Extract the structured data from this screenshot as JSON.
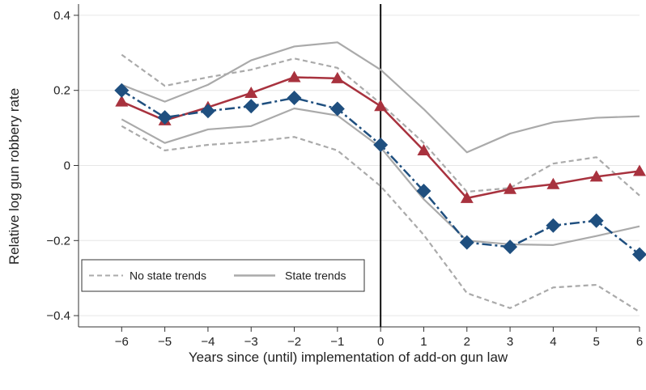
{
  "chart_data": {
    "type": "line",
    "xlabel": "Years since (until) implementation of add-on gun law",
    "ylabel": "Relative log gun robbery rate",
    "x": [
      -6,
      -5,
      -4,
      -3,
      -2,
      -1,
      0,
      1,
      2,
      3,
      4,
      5,
      6
    ],
    "xlim": [
      -7,
      6
    ],
    "ylim": [
      -0.43,
      0.43
    ],
    "yticks": [
      0.4,
      0.2,
      0,
      -0.2,
      -0.4
    ],
    "ytick_labels": [
      "0.4",
      "0.2",
      "0",
      "−0.2",
      "−0.4"
    ],
    "xtick_labels": [
      "−6",
      "−5",
      "−4",
      "−3",
      "−2",
      "−1",
      "0",
      "1",
      "2",
      "3",
      "4",
      "5",
      "6"
    ],
    "vline_x": 0,
    "grid": "horizontal",
    "legend": {
      "position": "lower-left",
      "entries": [
        {
          "label": "No state trends",
          "style": "dashed",
          "color": "#aaaaaa"
        },
        {
          "label": "State trends",
          "style": "solid",
          "color": "#aaaaaa"
        }
      ]
    },
    "series": [
      {
        "key": "no_trend_point",
        "style": "solid",
        "marker": "triangle",
        "color": "#a8323e",
        "values": [
          0.17,
          0.12,
          0.155,
          0.193,
          0.235,
          0.232,
          0.158,
          0.04,
          -0.087,
          -0.063,
          -0.05,
          -0.03,
          -0.015
        ]
      },
      {
        "key": "state_trend_point",
        "style": "dash-dot",
        "marker": "diamond",
        "color": "#1f4f7f",
        "values": [
          0.2,
          0.128,
          0.145,
          0.158,
          0.18,
          0.151,
          0.055,
          -0.068,
          -0.205,
          -0.217,
          -0.16,
          -0.147,
          -0.237
        ]
      },
      {
        "key": "no_trend_upper_ci",
        "style": "dashed",
        "color": "#aaaaaa",
        "values": [
          0.295,
          0.212,
          0.235,
          0.255,
          0.285,
          0.26,
          0.165,
          0.06,
          -0.07,
          -0.06,
          0.005,
          0.022,
          -0.08
        ]
      },
      {
        "key": "no_trend_lower_ci",
        "style": "dashed",
        "color": "#aaaaaa",
        "values": [
          0.105,
          0.04,
          0.055,
          0.063,
          0.076,
          0.04,
          -0.055,
          -0.185,
          -0.34,
          -0.38,
          -0.325,
          -0.318,
          -0.39
        ]
      },
      {
        "key": "state_trend_upper_ci",
        "style": "solid",
        "color": "#aaaaaa",
        "values": [
          0.215,
          0.17,
          0.215,
          0.28,
          0.317,
          0.328,
          0.255,
          0.15,
          0.035,
          0.085,
          0.115,
          0.127,
          0.131
        ]
      },
      {
        "key": "state_trend_lower_ci",
        "style": "solid",
        "color": "#aaaaaa",
        "values": [
          0.123,
          0.06,
          0.096,
          0.105,
          0.152,
          0.133,
          0.048,
          -0.09,
          -0.2,
          -0.21,
          -0.212,
          -0.188,
          -0.162
        ]
      }
    ]
  }
}
